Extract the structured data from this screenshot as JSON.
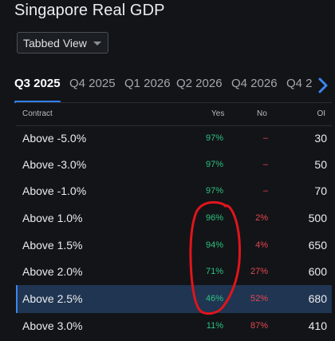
{
  "page": {
    "title": "Singapore Real GDP"
  },
  "view_select": {
    "value": "Tabbed View"
  },
  "tabs": [
    {
      "label": "Q3 2025",
      "active": true
    },
    {
      "label": "Q4 2025",
      "active": false
    },
    {
      "label": "Q1 2026",
      "active": false
    },
    {
      "label": "Q2 2026",
      "active": false
    },
    {
      "label": "Q4 2026",
      "active": false
    },
    {
      "label": "Q4 2",
      "active": false
    }
  ],
  "table": {
    "headers": {
      "contract": "Contract",
      "yes": "Yes",
      "no": "No",
      "oi": "OI"
    },
    "rows": [
      {
        "contract": "Above -5.0%",
        "yes": "97%",
        "no": "–",
        "oi": "30",
        "highlighted": false
      },
      {
        "contract": "Above -3.0%",
        "yes": "97%",
        "no": "–",
        "oi": "50",
        "highlighted": false
      },
      {
        "contract": "Above -1.0%",
        "yes": "97%",
        "no": "–",
        "oi": "70",
        "highlighted": false
      },
      {
        "contract": "Above 1.0%",
        "yes": "96%",
        "no": "2%",
        "oi": "500",
        "highlighted": false
      },
      {
        "contract": "Above 1.5%",
        "yes": "94%",
        "no": "4%",
        "oi": "650",
        "highlighted": false
      },
      {
        "contract": "Above 2.0%",
        "yes": "71%",
        "no": "27%",
        "oi": "600",
        "highlighted": false
      },
      {
        "contract": "Above 2.5%",
        "yes": "46%",
        "no": "52%",
        "oi": "680",
        "highlighted": true
      },
      {
        "contract": "Above 3.0%",
        "yes": "11%",
        "no": "87%",
        "oi": "410",
        "highlighted": false
      }
    ]
  },
  "icons": {
    "dropdown": "chevron-down-icon",
    "tab_scroll": "chevron-right-icon"
  },
  "colors": {
    "accent": "#2f80ed",
    "yes": "#2ec27e",
    "no": "#e5484d",
    "highlight_row": "#1f3552",
    "annotation": "#e0151b"
  }
}
